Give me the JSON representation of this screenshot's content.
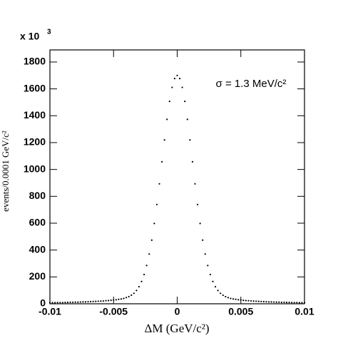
{
  "chart_data": {
    "type": "scatter",
    "multiplier": {
      "base": "x 10",
      "exponent": "3"
    },
    "annotation": "σ = 1.3 MeV/c²",
    "x_label": "ΔM (GeV/c²)",
    "y_label": "events/0.0001 GeV/c²",
    "color": "#000000",
    "x": [
      -0.01,
      -0.0098,
      -0.0096,
      -0.0094,
      -0.0092,
      -0.009,
      -0.0088,
      -0.0086,
      -0.0084,
      -0.0082,
      -0.008,
      -0.0078,
      -0.0076,
      -0.0074,
      -0.0072,
      -0.007,
      -0.0068,
      -0.0066,
      -0.0064,
      -0.0062,
      -0.006,
      -0.0058,
      -0.0056,
      -0.0054,
      -0.0052,
      -0.005,
      -0.0048,
      -0.0046,
      -0.0044,
      -0.0042,
      -0.004,
      -0.0038,
      -0.0036,
      -0.0034,
      -0.0032,
      -0.003,
      -0.0028,
      -0.0026,
      -0.0024,
      -0.0022,
      -0.002,
      -0.0018,
      -0.0016,
      -0.0014,
      -0.0012,
      -0.001,
      -0.0008,
      -0.0006,
      -0.0004,
      -0.0002,
      0,
      0.0002,
      0.0004,
      0.0006,
      0.0008,
      0.001,
      0.0012,
      0.0014,
      0.0016,
      0.0018,
      0.002,
      0.0022,
      0.0024,
      0.0026,
      0.0028,
      0.003,
      0.0032,
      0.0034,
      0.0036,
      0.0038,
      0.004,
      0.0042,
      0.0044,
      0.0046,
      0.0048,
      0.005,
      0.0052,
      0.0054,
      0.0056,
      0.0058,
      0.006,
      0.0062,
      0.0064,
      0.0066,
      0.0068,
      0.007,
      0.0072,
      0.0074,
      0.0076,
      0.0078,
      0.008,
      0.0082,
      0.0084,
      0.0086,
      0.0088,
      0.009,
      0.0092,
      0.0094,
      0.0096,
      0.0098,
      0.01
    ],
    "values": [
      8,
      8,
      8,
      9,
      9,
      9,
      10,
      10,
      11,
      11,
      12,
      12,
      13,
      14,
      14,
      15,
      16,
      17,
      18,
      19,
      20,
      21,
      23,
      24,
      26,
      28,
      30,
      33,
      36,
      40,
      46,
      53,
      64,
      78,
      99,
      127,
      166,
      218,
      285,
      370,
      474,
      598,
      739,
      893,
      1057,
      1220,
      1373,
      1507,
      1611,
      1677,
      1700,
      1677,
      1611,
      1507,
      1373,
      1220,
      1057,
      893,
      739,
      598,
      474,
      370,
      285,
      218,
      166,
      127,
      99,
      78,
      64,
      53,
      46,
      40,
      36,
      33,
      30,
      28,
      26,
      24,
      23,
      21,
      20,
      19,
      18,
      17,
      16,
      15,
      14,
      14,
      13,
      12,
      12,
      11,
      11,
      10,
      10,
      9,
      9,
      9,
      8,
      8,
      8
    ],
    "xlim": [
      -0.01,
      0.01
    ],
    "xticks": [
      -0.01,
      -0.005,
      0,
      0.005,
      0.01
    ],
    "ylim": [
      0,
      1890
    ],
    "yticks": [
      0,
      200,
      400,
      600,
      800,
      1000,
      1200,
      1400,
      1600,
      1800
    ]
  }
}
